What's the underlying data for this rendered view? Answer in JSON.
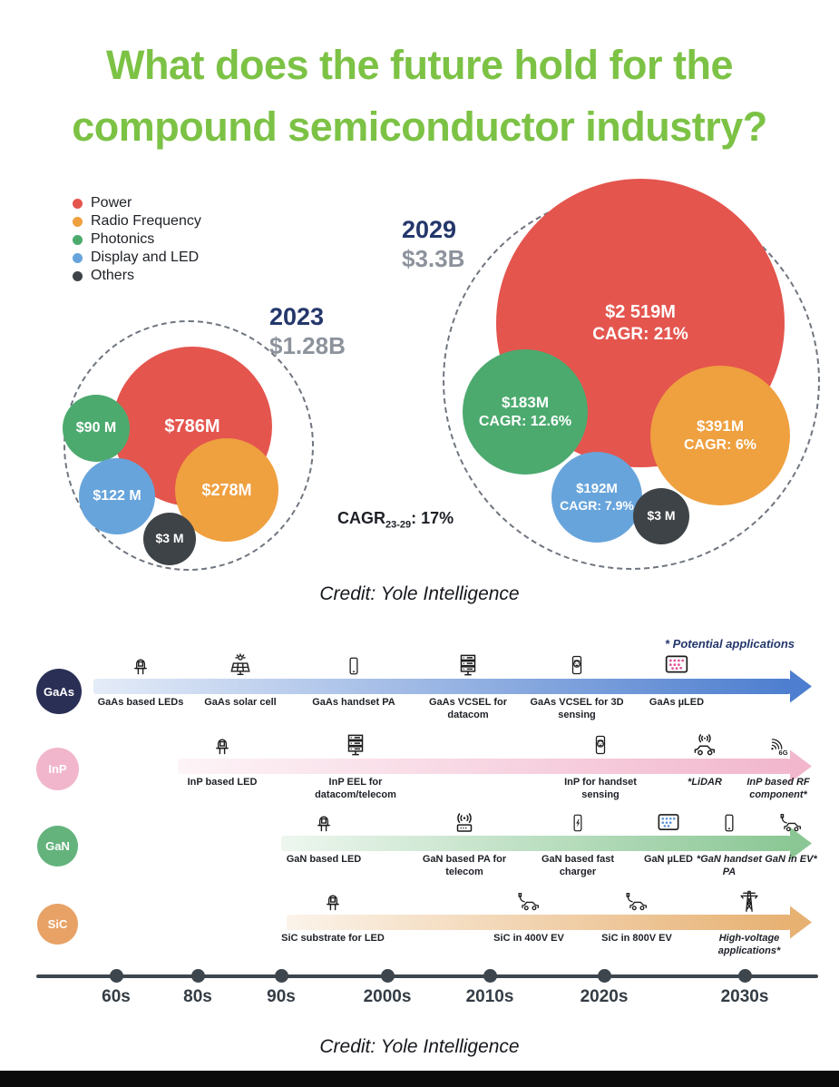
{
  "title": {
    "line1": "What does the future hold for the",
    "line2": "compound semiconductor industry?"
  },
  "colors": {
    "title_green": "#7CC245",
    "heading_navy": "#24376B",
    "total_gray": "#8D939C",
    "power_red": "#E4554E",
    "rf_orange": "#EFA03F",
    "photonics_green": "#4CAA6F",
    "display_blue": "#67A4DB",
    "others_dark": "#3E4347"
  },
  "legend": [
    {
      "label": "Power",
      "color": "#E4554E"
    },
    {
      "label": "Radio Frequency",
      "color": "#EFA03F"
    },
    {
      "label": "Photonics",
      "color": "#4CAA6F"
    },
    {
      "label": "Display and LED",
      "color": "#67A4DB"
    },
    {
      "label": "Others",
      "color": "#3E4347"
    }
  ],
  "chart_data": {
    "type": "bubble",
    "title": "Compound semiconductor market by application, 2023 vs 2029",
    "legend_position": "top-left",
    "groups": [
      {
        "year": "2023",
        "total": "$1.28B",
        "bubbles": [
          {
            "segment": "Power",
            "value_label": "$786M",
            "value_musd": 786
          },
          {
            "segment": "Photonics",
            "value_label": "$90 M",
            "value_musd": 90
          },
          {
            "segment": "Display and LED",
            "value_label": "$122 M",
            "value_musd": 122
          },
          {
            "segment": "Radio Frequency",
            "value_label": "$278M",
            "value_musd": 278
          },
          {
            "segment": "Others",
            "value_label": "$3 M",
            "value_musd": 3
          }
        ]
      },
      {
        "year": "2029",
        "total": "$3.3B",
        "bubbles": [
          {
            "segment": "Power",
            "value_label": "$2 519M",
            "cagr": "CAGR: 21%",
            "value_musd": 2519
          },
          {
            "segment": "Photonics",
            "value_label": "$183M",
            "cagr": "CAGR: 12.6%",
            "value_musd": 183
          },
          {
            "segment": "Radio Frequency",
            "value_label": "$391M",
            "cagr": "CAGR: 6%",
            "value_musd": 391
          },
          {
            "segment": "Display and LED",
            "value_label": "$192M",
            "cagr": "CAGR: 7.9%",
            "value_musd": 192
          },
          {
            "segment": "Others",
            "value_label": "$3 M",
            "value_musd": 3
          }
        ]
      }
    ],
    "overall_cagr": {
      "prefix": "CAGR",
      "subscript": "23-29",
      "suffix": ": 17%"
    }
  },
  "credit_top": "Credit: Yole Intelligence",
  "credit_bottom": "Credit: Yole Intelligence",
  "timeline": {
    "note": "* Potential applications",
    "rows": [
      {
        "material": "GaAs",
        "badge_color": "#2A2F55",
        "arrow_color": "#4D7ECF",
        "milestones": [
          {
            "label": "GaAs based LEDs",
            "icon": "led"
          },
          {
            "label": "GaAs solar cell",
            "icon": "solar-panel"
          },
          {
            "label": "GaAs handset PA",
            "icon": "smartphone"
          },
          {
            "label": "GaAs VCSEL for datacom",
            "icon": "server-rack"
          },
          {
            "label": "GaAs VCSEL for 3D sensing",
            "icon": "phone-3d-sensing"
          },
          {
            "label": "GaAs µLED",
            "icon": "micro-led-display-pink"
          }
        ]
      },
      {
        "material": "InP",
        "badge_color": "#F1B6CC",
        "arrow_color": "#F2B7CD",
        "milestones": [
          {
            "label": "InP based LED",
            "icon": "led"
          },
          {
            "label": "InP EEL for datacom/telecom",
            "icon": "server-rack"
          },
          {
            "label": "InP for handset sensing",
            "icon": "phone-3d-sensing"
          },
          {
            "label": "*LiDAR",
            "icon": "car-lidar"
          },
          {
            "label": "InP based RF component*",
            "icon": "rf-6g",
            "icon_label": "6G"
          }
        ]
      },
      {
        "material": "GaN",
        "badge_color": "#64B37D",
        "arrow_color": "#8BC795",
        "milestones": [
          {
            "label": "GaN based LED",
            "icon": "led"
          },
          {
            "label": "GaN based PA for telecom",
            "icon": "antenna"
          },
          {
            "label": "GaN based fast charger",
            "icon": "phone-fast-charge"
          },
          {
            "label": "GaN µLED",
            "icon": "micro-led-display-blue"
          },
          {
            "label": "*GaN handset PA",
            "icon": "smartphone"
          },
          {
            "label": "GaN in EV*",
            "icon": "car-charging"
          }
        ]
      },
      {
        "material": "SiC",
        "badge_color": "#E8A266",
        "arrow_color": "#E7B172",
        "milestones": [
          {
            "label": "SiC substrate for LED",
            "icon": "led"
          },
          {
            "label": "SiC in 400V EV",
            "icon": "car-charging"
          },
          {
            "label": "SiC in 800V EV",
            "icon": "car-charging"
          },
          {
            "label": "High-voltage applications*",
            "icon": "power-tower"
          }
        ]
      }
    ],
    "axis_labels": [
      "60s",
      "80s",
      "90s",
      "2000s",
      "2010s",
      "2020s",
      "2030s"
    ]
  }
}
